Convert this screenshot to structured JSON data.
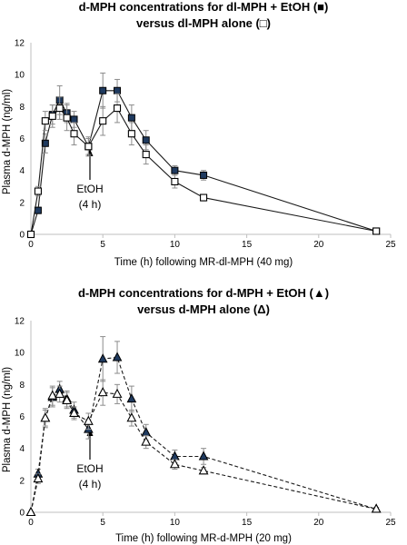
{
  "chart_data": [
    {
      "type": "line",
      "title": "d-MPH concentrations for dl-MPH + EtOH (■)",
      "subtitle": "versus dl-MPH alone (□)",
      "xlabel": "Time (h) following MR-dl-MPH (40 mg)",
      "ylabel": "Plasma d-MPH (ng/ml)",
      "xlim": [
        0,
        25
      ],
      "ylim": [
        0,
        12
      ],
      "xticks": [
        "0",
        "5",
        "10",
        "15",
        "20",
        "25"
      ],
      "yticks": [
        "0",
        "2",
        "4",
        "6",
        "8",
        "10",
        "12"
      ],
      "grid": false,
      "annotation": {
        "line1": "EtOH",
        "line2": "(4 h)",
        "x": 4
      },
      "series": [
        {
          "marker": "filled-square",
          "line_style": "solid",
          "x": [
            0,
            0.5,
            1,
            1.5,
            2,
            2.5,
            3,
            4,
            5,
            6,
            7,
            8,
            10,
            12,
            24
          ],
          "y": [
            0.0,
            1.5,
            5.7,
            7.5,
            8.4,
            7.6,
            7.2,
            5.5,
            9.0,
            9.0,
            7.3,
            5.9,
            4.0,
            3.7,
            0.2
          ],
          "err": [
            0,
            0.2,
            0.6,
            0.6,
            0.9,
            0.6,
            0.5,
            0.5,
            1.1,
            0.7,
            0.8,
            0.6,
            0.3,
            0.3,
            0.1
          ]
        },
        {
          "marker": "open-square",
          "line_style": "solid",
          "x": [
            0,
            0.5,
            1,
            1.5,
            2,
            2.5,
            3,
            4,
            5,
            6,
            7,
            8,
            10,
            12,
            24
          ],
          "y": [
            0.0,
            2.7,
            7.1,
            7.4,
            7.9,
            7.3,
            6.3,
            5.5,
            7.1,
            7.9,
            6.3,
            5.0,
            3.3,
            2.3,
            0.2
          ],
          "err": [
            0,
            0.3,
            0.6,
            0.7,
            0.7,
            0.8,
            0.7,
            0.6,
            0.9,
            0.9,
            0.7,
            0.6,
            0.4,
            0.2,
            0.1
          ]
        }
      ]
    },
    {
      "type": "line",
      "title": "d-MPH concentrations for d-MPH + EtOH (▲)",
      "subtitle": "versus d-MPH alone (Δ)",
      "xlabel": "Time (h) following MR-d-MPH (20 mg)",
      "ylabel": "Plasma d-MPH (ng/ml)",
      "xlim": [
        0,
        25
      ],
      "ylim": [
        0,
        12
      ],
      "xticks": [
        "0",
        "5",
        "10",
        "15",
        "20",
        "25"
      ],
      "yticks": [
        "0",
        "2",
        "4",
        "6",
        "8",
        "10",
        "12"
      ],
      "grid": false,
      "annotation": {
        "line1": "EtOH",
        "line2": "(4 h)",
        "x": 4
      },
      "series": [
        {
          "marker": "filled-triangle",
          "line_style": "dashed",
          "x": [
            0,
            0.5,
            1,
            1.5,
            2,
            2.5,
            3,
            4,
            5,
            6,
            7,
            8,
            10,
            12,
            24
          ],
          "y": [
            0.0,
            2.4,
            5.9,
            7.2,
            7.7,
            7.1,
            6.4,
            5.2,
            9.6,
            9.7,
            7.1,
            5.0,
            3.5,
            3.5,
            0.2
          ],
          "err": [
            0,
            0.3,
            0.6,
            0.6,
            0.5,
            0.5,
            0.5,
            0.6,
            1.4,
            1.0,
            0.8,
            0.5,
            0.4,
            0.5,
            0.1
          ]
        },
        {
          "marker": "open-triangle",
          "line_style": "dashed",
          "x": [
            0,
            0.5,
            1,
            1.5,
            2,
            2.5,
            3,
            4,
            5,
            6,
            7,
            8,
            10,
            12,
            24
          ],
          "y": [
            0.0,
            2.1,
            5.9,
            7.3,
            7.4,
            7.0,
            6.2,
            5.7,
            7.5,
            7.4,
            5.9,
            4.4,
            3.0,
            2.6,
            0.2
          ],
          "err": [
            0,
            0.3,
            0.5,
            0.6,
            0.5,
            0.5,
            0.4,
            0.5,
            0.8,
            0.6,
            0.5,
            0.4,
            0.3,
            0.2,
            0.1
          ]
        }
      ]
    }
  ]
}
